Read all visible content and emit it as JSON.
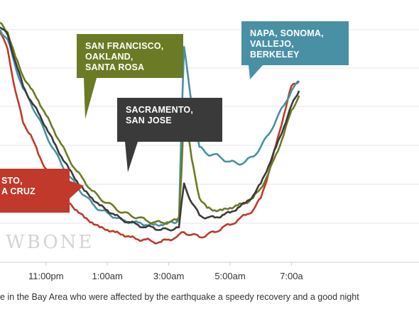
{
  "chart_data": {
    "type": "line",
    "title": "",
    "xlabel": "",
    "ylabel": "",
    "x": [
      "21:30",
      "21:45",
      "22:00",
      "22:15",
      "22:30",
      "22:45",
      "23:00",
      "23:15",
      "23:30",
      "23:45",
      "00:00",
      "00:15",
      "00:30",
      "00:45",
      "01:00",
      "01:15",
      "01:30",
      "01:45",
      "02:00",
      "02:15",
      "02:30",
      "02:45",
      "03:00",
      "03:15",
      "03:20",
      "03:25",
      "03:30",
      "03:45",
      "04:00",
      "04:15",
      "04:30",
      "04:45",
      "05:00",
      "05:15",
      "05:30",
      "05:45",
      "06:00",
      "06:15",
      "06:30",
      "06:45",
      "07:00",
      "07:15"
    ],
    "x_ticks": [
      "11:00pm",
      "1:00am",
      "3:00am",
      "5:00am",
      "7:00a"
    ],
    "x_tick_times": [
      "23:00",
      "01:00",
      "03:00",
      "05:00",
      "07:00"
    ],
    "grid": "horizontal",
    "series": [
      {
        "color": "#c0392b",
        "values": [
          92,
          85,
          68,
          55,
          50,
          42,
          36,
          30,
          26,
          22,
          19,
          16,
          14,
          12,
          11,
          10,
          9,
          8,
          7,
          7,
          6,
          6,
          7,
          8,
          9,
          10,
          10,
          9,
          8,
          9,
          10,
          12,
          13,
          15,
          17,
          19,
          24,
          34,
          46,
          58,
          70,
          72
        ]
      },
      {
        "color": "#4a90a4",
        "values": [
          93,
          89,
          78,
          69,
          63,
          57,
          50,
          44,
          38,
          33,
          29,
          25,
          22,
          19,
          18,
          16,
          15,
          14,
          14,
          13,
          13,
          13,
          14,
          14,
          15,
          55,
          86,
          62,
          45,
          42,
          42,
          40,
          39,
          38,
          39,
          41,
          45,
          50,
          56,
          62,
          68,
          72
        ]
      },
      {
        "color": "#6b7a24",
        "values": [
          96,
          92,
          82,
          74,
          69,
          64,
          58,
          52,
          46,
          40,
          35,
          31,
          27,
          24,
          22,
          20,
          18,
          17,
          16,
          15,
          14,
          14,
          14,
          15,
          16,
          35,
          61,
          40,
          24,
          20,
          19,
          19,
          20,
          21,
          22,
          24,
          28,
          34,
          42,
          50,
          60,
          66
        ]
      },
      {
        "color": "#3a3a3a",
        "values": [
          94,
          91,
          80,
          70,
          64,
          59,
          53,
          47,
          41,
          36,
          31,
          27,
          24,
          21,
          19,
          17,
          15,
          14,
          13,
          12,
          12,
          11,
          11,
          12,
          12,
          22,
          30,
          22,
          17,
          16,
          16,
          17,
          18,
          20,
          22,
          25,
          30,
          37,
          45,
          53,
          62,
          68
        ]
      }
    ],
    "callouts": [
      {
        "lines": [
          "SAN FRANCISCO,",
          "OAKLAND,",
          "SANTA ROSA"
        ],
        "color": "#6b7a24"
      },
      {
        "lines": [
          "SACRAMENTO,",
          "SAN JOSE"
        ],
        "color": "#3a3a3a"
      },
      {
        "lines": [
          "NAPA, SONOMA,",
          "VALLEJO,",
          "BERKELEY"
        ],
        "color": "#4a90a4"
      },
      {
        "lines": [
          "STO,",
          "A CRUZ"
        ],
        "color": "#c0392b"
      }
    ],
    "watermark": "WBONE"
  },
  "caption": "e in the Bay Area who were affected by the earthquake a speedy recovery and a good night"
}
